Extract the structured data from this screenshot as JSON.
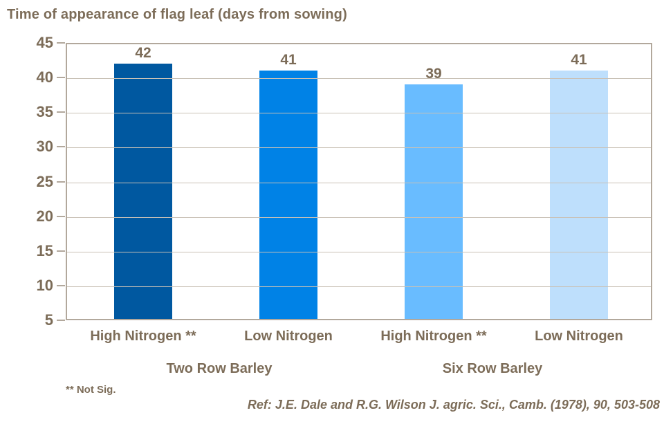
{
  "chart_data": {
    "type": "bar",
    "title": "Time of appearance of flag leaf (days from sowing)",
    "categories": [
      "High Nitrogen **",
      "Low Nitrogen",
      "High Nitrogen **",
      "Low Nitrogen"
    ],
    "values": [
      42,
      41,
      39,
      41
    ],
    "group_labels": [
      "Two Row Barley",
      "Six Row Barley"
    ],
    "bar_colors": [
      "#0058a0",
      "#0082e6",
      "#69bcff",
      "#bedffc"
    ],
    "ylim": [
      5,
      45
    ],
    "yticks": [
      45,
      40,
      35,
      30,
      25,
      20,
      15,
      10,
      5
    ],
    "grid": true,
    "legend": "none",
    "footnote": "** Not Sig.",
    "reference": "Ref: J.E. Dale and R.G. Wilson J. agric. Sci., Camb. (1978), 90, 503-508",
    "colors": {
      "text": "#7c6c58",
      "grid": "#c9c1b6",
      "axis": "#b2a89c",
      "background": "#ffffff"
    }
  }
}
